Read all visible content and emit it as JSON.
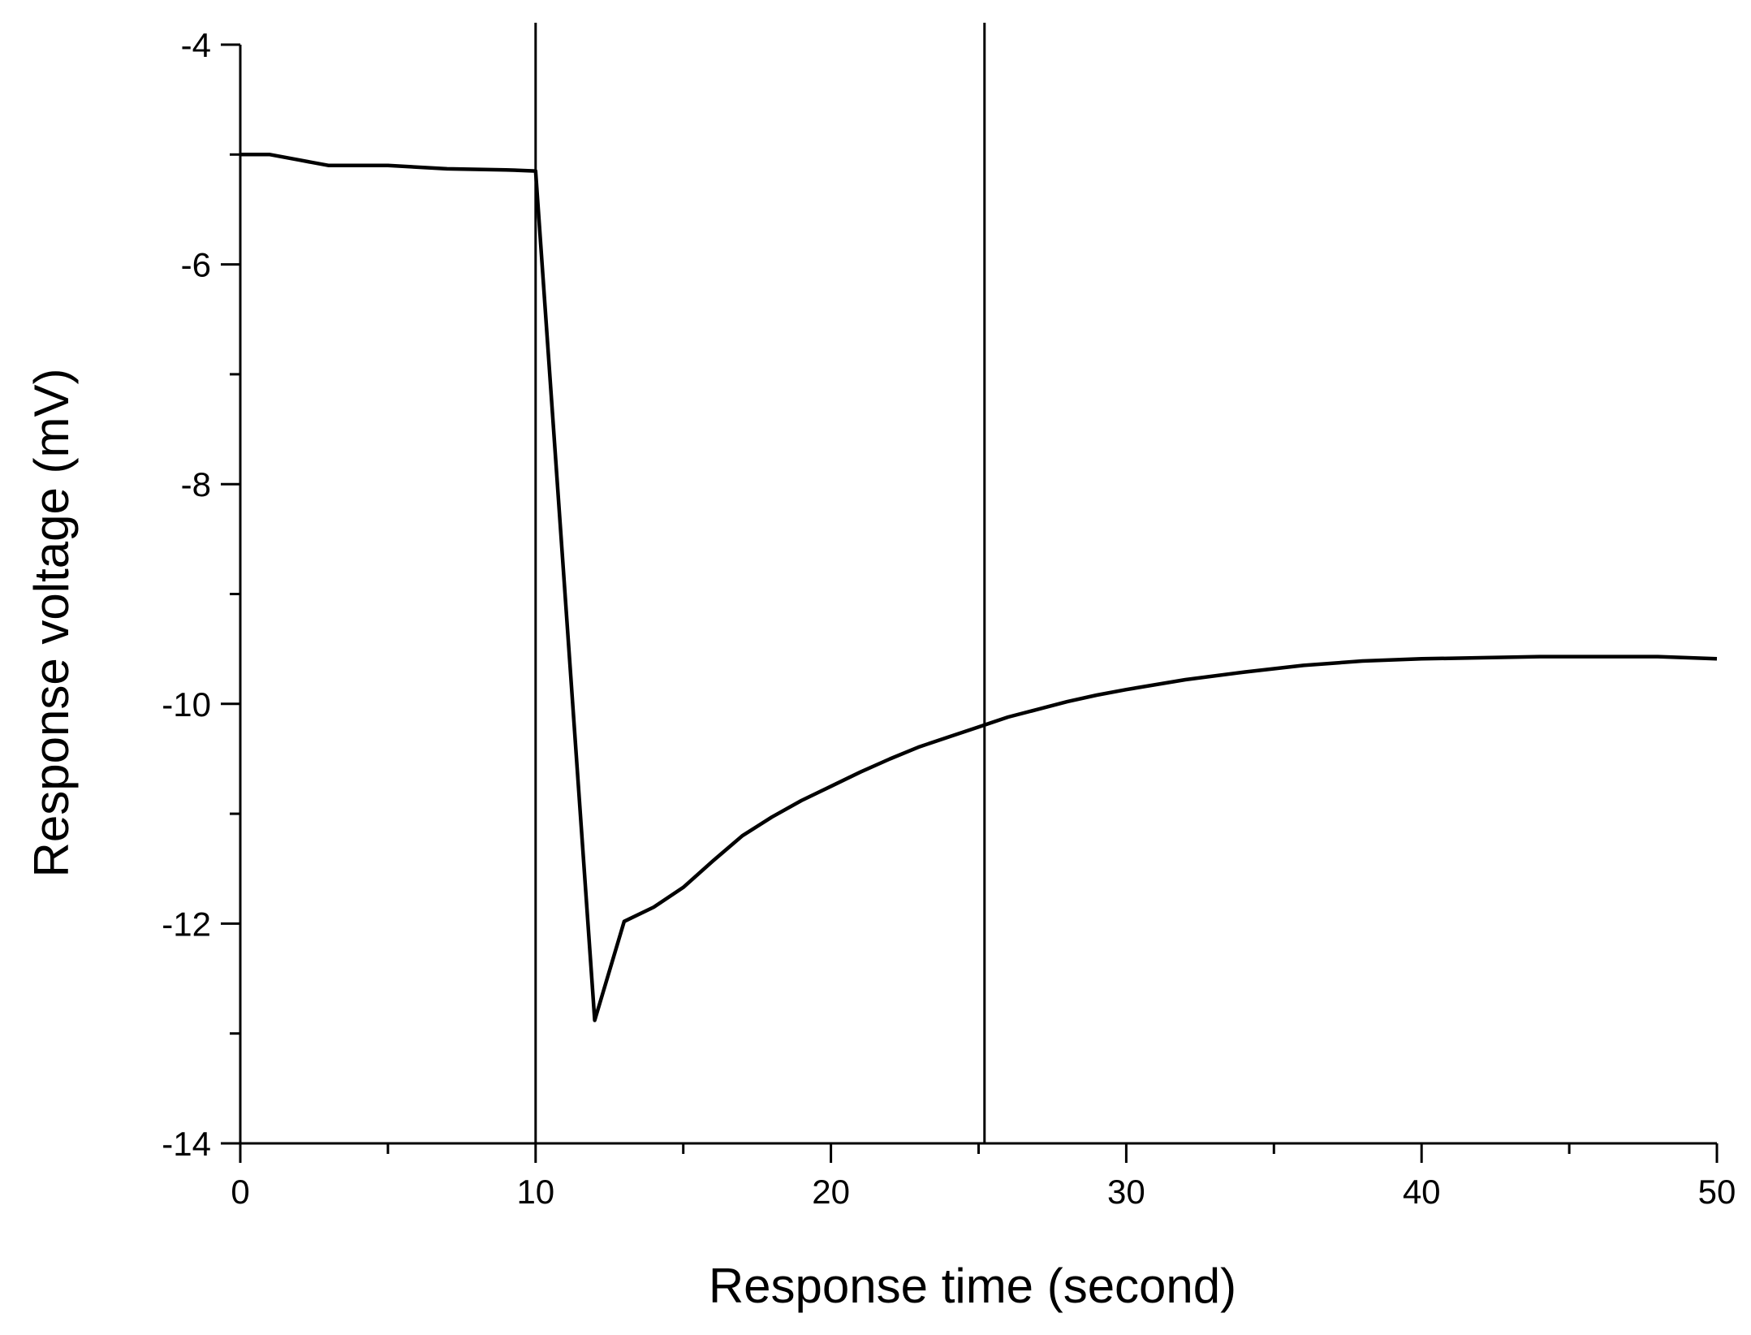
{
  "chart_data": {
    "type": "line",
    "title": "",
    "xlabel": "Response time (second)",
    "ylabel": "Response voltage (mV)",
    "xlim": [
      0,
      50
    ],
    "ylim": [
      -14,
      -4
    ],
    "x_ticks": [
      0,
      10,
      20,
      30,
      40,
      50
    ],
    "x_tick_labels": [
      "0",
      "10",
      "20",
      "30",
      "40",
      "50"
    ],
    "x_minor_ticks": [
      5,
      15,
      25,
      35,
      45
    ],
    "y_ticks": [
      -14,
      -12,
      -10,
      -8,
      -6,
      -4
    ],
    "y_tick_labels": [
      "-14",
      "-12",
      "-10",
      "-8",
      "-6",
      "-4"
    ],
    "y_minor_ticks": [
      -13,
      -11,
      -9,
      -7,
      -5
    ],
    "grid": false,
    "legend": "none",
    "line_color": "#000000",
    "vertical_markers": [
      10,
      25.2
    ],
    "series": [
      {
        "x": [
          0,
          1,
          2,
          3,
          5,
          7,
          9,
          10,
          12,
          13,
          14,
          15,
          16,
          17,
          18,
          19,
          20,
          21,
          22,
          23,
          24,
          25,
          26,
          27,
          28,
          29,
          30,
          32,
          34,
          36,
          38,
          40,
          42,
          44,
          46,
          48,
          50
        ],
        "y": [
          -5.0,
          -5.0,
          -5.05,
          -5.1,
          -5.1,
          -5.13,
          -5.14,
          -5.15,
          -12.88,
          -11.98,
          -11.85,
          -11.67,
          -11.43,
          -11.2,
          -11.03,
          -10.88,
          -10.75,
          -10.62,
          -10.5,
          -10.39,
          -10.3,
          -10.21,
          -10.12,
          -10.05,
          -9.98,
          -9.92,
          -9.87,
          -9.78,
          -9.71,
          -9.65,
          -9.61,
          -9.59,
          -9.58,
          -9.57,
          -9.57,
          -9.57,
          -9.59
        ]
      }
    ]
  }
}
